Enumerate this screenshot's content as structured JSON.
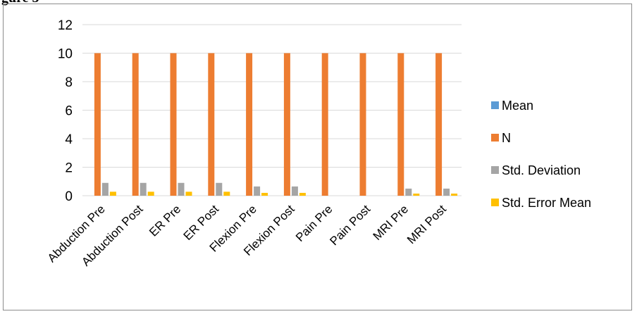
{
  "caption": "gure 3",
  "colors": {
    "mean": "#5b9bd5",
    "n": "#ed7d31",
    "std_dev": "#a5a5a5",
    "std_err": "#ffc000",
    "grid": "#d9d9d9"
  },
  "chart_data": {
    "type": "bar",
    "categories": [
      "Abduction Pre",
      "Abduction Post",
      "ER Pre",
      "ER Post",
      "Flexion Pre",
      "Flexion Post",
      "Pain Pre",
      "Pain Post",
      "MRI Pre",
      "MRI Post"
    ],
    "series": [
      {
        "name": "Mean",
        "values": [
          0,
          0,
          0,
          0,
          0,
          0,
          0,
          0,
          0,
          0
        ]
      },
      {
        "name": "N",
        "values": [
          10,
          10,
          10,
          10,
          10,
          10,
          10,
          10,
          10,
          10
        ]
      },
      {
        "name": "Std. Deviation",
        "values": [
          0.9,
          0.9,
          0.9,
          0.9,
          0.65,
          0.65,
          0,
          0,
          0.5,
          0.5
        ]
      },
      {
        "name": "Std. Error Mean",
        "values": [
          0.28,
          0.28,
          0.28,
          0.28,
          0.2,
          0.2,
          0,
          0,
          0.15,
          0.15
        ]
      }
    ],
    "yticks": [
      "0",
      "2",
      "4",
      "6",
      "8",
      "10",
      "12"
    ],
    "ylim": [
      0,
      12
    ],
    "grid": true,
    "legend_position": "right"
  }
}
